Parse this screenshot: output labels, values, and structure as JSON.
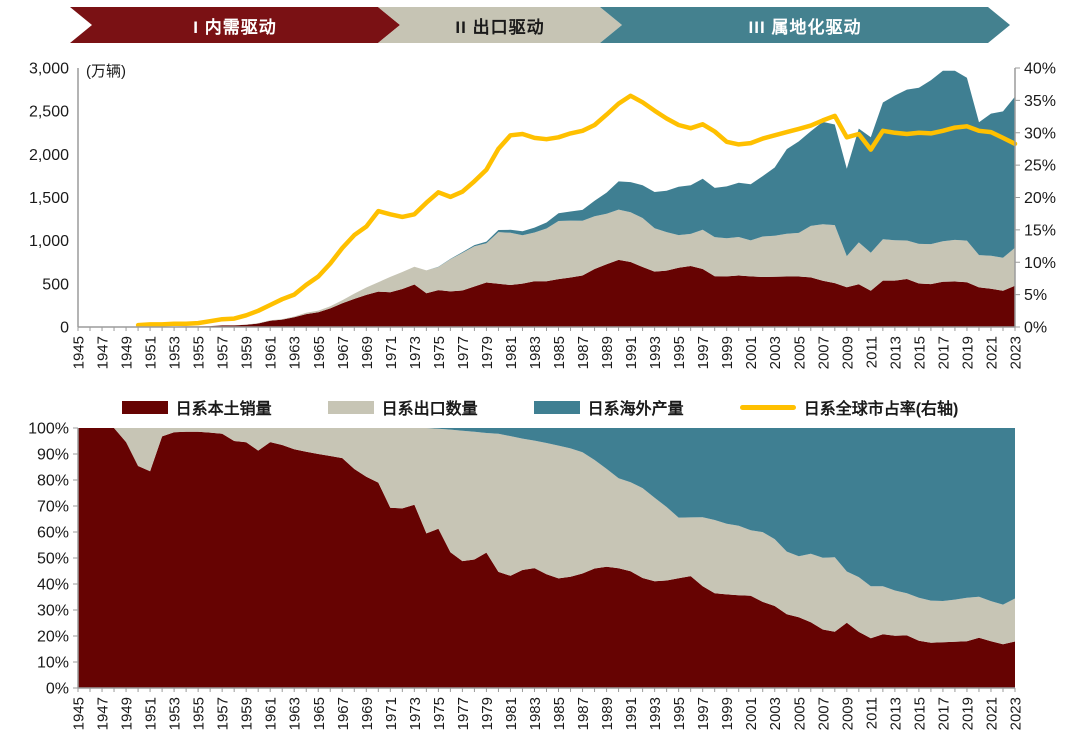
{
  "banners": [
    {
      "label": "I 内需驱动",
      "color": "#7A1114",
      "text_color": "#ffffff"
    },
    {
      "label": "II 出口驱动",
      "color": "#C6C4B4",
      "text_color": "#1a1a1a"
    },
    {
      "label": "III 属地化驱动",
      "color": "#44818F",
      "text_color": "#ffffff"
    }
  ],
  "legend": {
    "items": [
      {
        "label": "日系本土销量",
        "color": "#660302",
        "type": "box"
      },
      {
        "label": "日系出口数量",
        "color": "#C7C5B5",
        "type": "box"
      },
      {
        "label": "日系海外产量",
        "color": "#3F7F92",
        "type": "box"
      },
      {
        "label": "日系全球市占率(右轴)",
        "color": "#FFC000",
        "type": "line"
      }
    ]
  },
  "chart_data": [
    {
      "type": "area",
      "stacked": true,
      "title": "",
      "unit_label": "(万辆)",
      "x_range": [
        1945,
        2023
      ],
      "x_label_step": 2,
      "ylim": [
        0,
        3000
      ],
      "y_ticks": [
        0,
        500,
        1000,
        1500,
        2000,
        2500,
        3000
      ],
      "y2lim": [
        0,
        40
      ],
      "y2_ticks": [
        0,
        5,
        10,
        15,
        20,
        25,
        30,
        35,
        40
      ],
      "grid": false,
      "legend_position": "below",
      "series": [
        {
          "name": "日系本土销量",
          "color": "#660302",
          "values": [
            0.2,
            1.5,
            2.5,
            3.5,
            3.5,
            3.5,
            4,
            4.5,
            6,
            7,
            7,
            11,
            18,
            19,
            26,
            41,
            73,
            86,
            112,
            149,
            171,
            215,
            275,
            326,
            372,
            410,
            402,
            440,
            492,
            390,
            427,
            412,
            423,
            469,
            515,
            502,
            486,
            503,
            531,
            530,
            555,
            573,
            597,
            672,
            726,
            777,
            753,
            695,
            642,
            653,
            686,
            707,
            672,
            587,
            586,
            596,
            586,
            579,
            583,
            585,
            585,
            574,
            535,
            508,
            460,
            496,
            421,
            537,
            538,
            556,
            504,
            497,
            523,
            527,
            519,
            459,
            444,
            420,
            477
          ]
        },
        {
          "name": "日系出口数量",
          "color": "#C7C5B5",
          "values": [
            0,
            0,
            0,
            0,
            0.2,
            0.6,
            0.8,
            0.15,
            0.1,
            0.1,
            0.1,
            0.2,
            0.4,
            1,
            1.5,
            3.9,
            4.2,
            6,
            10,
            15,
            19,
            26,
            36,
            61,
            86,
            109,
            178,
            197,
            206,
            266,
            268,
            372,
            435,
            466,
            455,
            597,
            605,
            560,
            564,
            611,
            673,
            660,
            633,
            610,
            586,
            583,
            575,
            568,
            502,
            446,
            379,
            371,
            455,
            454,
            442,
            446,
            417,
            469,
            475,
            496,
            505,
            597,
            655,
            672,
            361,
            484,
            440,
            480,
            467,
            446,
            458,
            463,
            470,
            482,
            482,
            374,
            382,
            381,
            442
          ]
        },
        {
          "name": "日系海外产量",
          "color": "#3F7F92",
          "values": [
            0,
            0,
            0,
            0,
            0,
            0,
            0,
            0,
            0,
            0,
            0,
            0,
            0,
            0,
            0,
            0,
            0,
            0,
            0,
            0,
            0,
            0,
            0,
            0,
            0,
            0,
            0,
            0,
            0,
            0,
            2,
            5,
            9,
            14,
            19,
            25,
            35,
            45,
            56,
            70,
            89,
            105,
            126,
            180,
            245,
            326,
            350,
            380,
            420,
            480,
            560,
            565,
            590,
            570,
            600,
            628,
            650,
            700,
            790,
            980,
            1060,
            1097,
            1186,
            1165,
            1012,
            1318,
            1338,
            1583,
            1676,
            1748,
            1809,
            1897,
            1974,
            1960,
            1885,
            1538,
            1646,
            1696,
            1750
          ]
        }
      ],
      "line_series": {
        "name": "日系全球市占率(右轴)",
        "axis": "right",
        "color": "#FFC000",
        "values": [
          null,
          null,
          null,
          null,
          null,
          0.3,
          0.4,
          0.4,
          0.5,
          0.5,
          0.6,
          0.9,
          1.2,
          1.3,
          1.8,
          2.5,
          3.4,
          4.3,
          5.0,
          6.5,
          7.8,
          9.8,
          12.2,
          14.2,
          15.5,
          17.9,
          17.4,
          17.0,
          17.4,
          19.2,
          20.8,
          20.1,
          20.9,
          22.5,
          24.3,
          27.5,
          29.6,
          29.8,
          29.2,
          29.0,
          29.3,
          29.9,
          30.3,
          31.2,
          32.8,
          34.5,
          35.7,
          34.7,
          33.4,
          32.2,
          31.2,
          30.7,
          31.3,
          30.2,
          28.6,
          28.2,
          28.4,
          29.1,
          29.6,
          30.1,
          30.6,
          31.1,
          31.9,
          32.6,
          29.3,
          29.8,
          27.4,
          30.3,
          30.0,
          29.8,
          30.0,
          29.9,
          30.3,
          30.8,
          31.0,
          30.3,
          30.1,
          29.2,
          28.3
        ]
      }
    },
    {
      "type": "area",
      "stacked_percent": true,
      "title": "",
      "x_range": [
        1945,
        2023
      ],
      "x_label_step": 2,
      "ylim": [
        0,
        100
      ],
      "y_ticks": [
        0,
        10,
        20,
        30,
        40,
        50,
        60,
        70,
        80,
        90,
        100
      ],
      "grid": false,
      "derived_from_chart": 0,
      "note": "same three series as the top chart normalized to 100% per year"
    }
  ]
}
